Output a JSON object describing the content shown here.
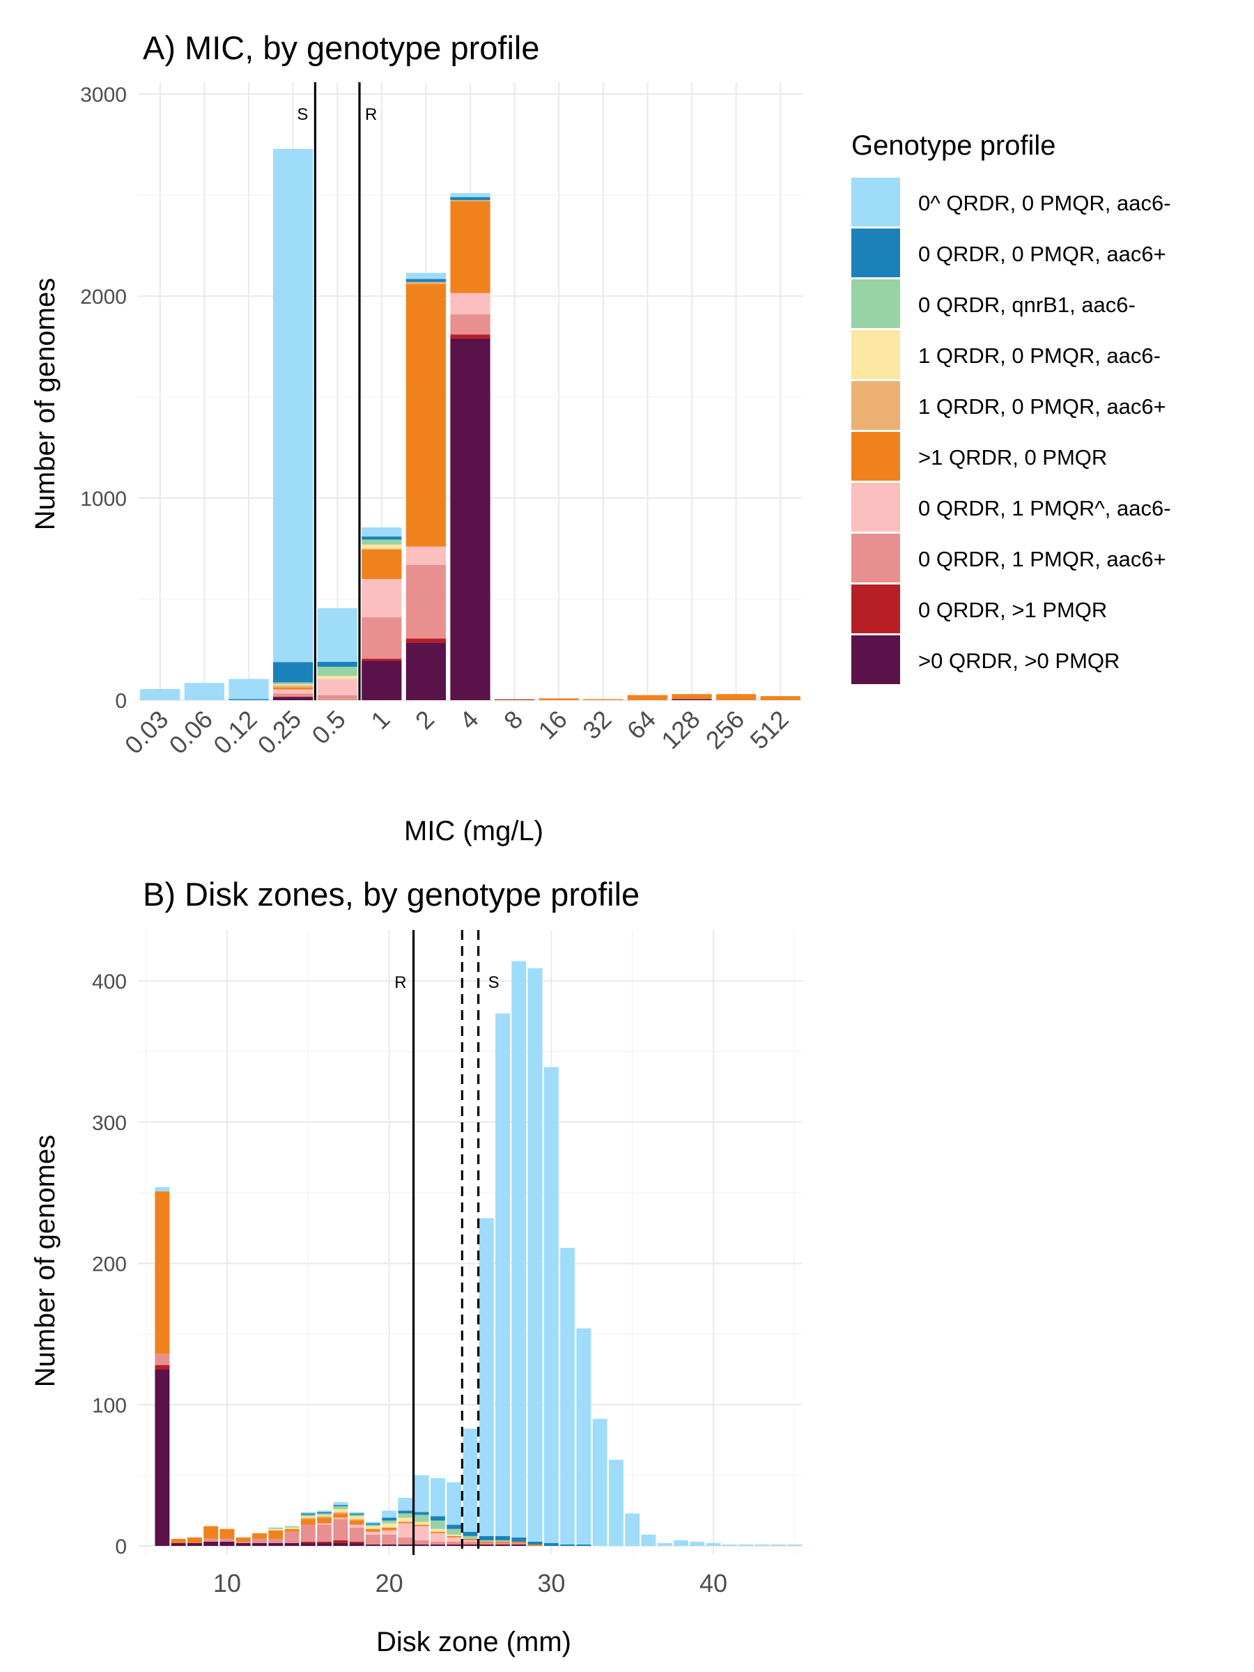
{
  "colors": {
    "0^ QRDR, 0 PMQR, aac6-": "#9edcf9",
    "0 QRDR, 0 PMQR, aac6+": "#1a82b9",
    "0 QRDR, qnrB1, aac6-": "#98d3a5",
    ">1 QRDR, 0 PMQR": "#f0821e",
    "1 QRDR, 0 PMQR, aac6-": "#fbe6a2",
    "1 QRDR, 0 PMQR, aac6+": "#ecb172",
    "0 QRDR, 1 PMQR^, aac6-": "#fcbfc0",
    "0 QRDR, 1 PMQR, aac6+": "#e8908f",
    "0 QRDR, >1 PMQR": "#b81f24",
    ">0 QRDR, >0 PMQR": "#5a124a"
  },
  "legend": {
    "title": "Genotype profile",
    "items": [
      "0^ QRDR, 0 PMQR, aac6-",
      "0 QRDR, 0 PMQR, aac6+",
      "0 QRDR, qnrB1, aac6-",
      "1 QRDR, 0 PMQR, aac6-",
      "1 QRDR, 0 PMQR, aac6+",
      ">1 QRDR, 0 PMQR",
      "0 QRDR, 1 PMQR^, aac6-",
      "0 QRDR, 1 PMQR, aac6+",
      "0 QRDR, >1 PMQR",
      ">0 QRDR, >0 PMQR"
    ]
  },
  "chart_data": [
    {
      "type": "bar",
      "stacked": true,
      "title": "A) MIC, by genotype profile",
      "xlabel": "MIC (mg/L)",
      "ylabel": "Number of genomes",
      "ylim": [
        0,
        3000
      ],
      "yticks": [
        "0",
        "1000",
        "2000",
        "3000"
      ],
      "grid": true,
      "legend_position": "right",
      "categories": [
        "0.03",
        "0.06",
        "0.12",
        "0.25",
        "0.5",
        "1",
        "2",
        "4",
        "8",
        "16",
        "32",
        "64",
        "128",
        "256",
        "512"
      ],
      "reference_lines": [
        {
          "label": "S",
          "between": [
            "0.25",
            "0.5"
          ],
          "style": "solid"
        },
        {
          "label": "R",
          "between": [
            "0.5",
            "1"
          ],
          "style": "solid"
        }
      ],
      "series": [
        {
          "name": ">0 QRDR, >0 PMQR",
          "values": [
            0,
            0,
            0,
            15,
            0,
            195,
            285,
            1790,
            3,
            0,
            0,
            0,
            5,
            0,
            0
          ]
        },
        {
          "name": "0 QRDR, >1 PMQR",
          "values": [
            0,
            0,
            0,
            3,
            0,
            10,
            20,
            20,
            0,
            0,
            0,
            0,
            0,
            0,
            0
          ]
        },
        {
          "name": "0 QRDR, 1 PMQR, aac6+",
          "values": [
            0,
            0,
            0,
            15,
            25,
            205,
            365,
            100,
            0,
            0,
            0,
            0,
            0,
            0,
            0
          ]
        },
        {
          "name": "0 QRDR, 1 PMQR^, aac6-",
          "values": [
            0,
            0,
            0,
            20,
            80,
            190,
            90,
            105,
            0,
            0,
            0,
            0,
            0,
            0,
            0
          ]
        },
        {
          "name": ">1 QRDR, 0 PMQR",
          "values": [
            0,
            0,
            0,
            10,
            0,
            145,
            1300,
            455,
            2,
            8,
            5,
            25,
            25,
            30,
            20
          ]
        },
        {
          "name": "1 QRDR, 0 PMQR, aac6+",
          "values": [
            0,
            0,
            0,
            10,
            0,
            5,
            10,
            5,
            0,
            2,
            0,
            0,
            0,
            0,
            0
          ]
        },
        {
          "name": "1 QRDR, 0 PMQR, aac6-",
          "values": [
            0,
            0,
            0,
            5,
            15,
            20,
            0,
            0,
            0,
            0,
            0,
            0,
            0,
            0,
            0
          ]
        },
        {
          "name": "0 QRDR, qnrB1, aac6-",
          "values": [
            0,
            0,
            0,
            10,
            45,
            25,
            0,
            0,
            0,
            0,
            0,
            0,
            0,
            0,
            0
          ]
        },
        {
          "name": "0 QRDR, 0 PMQR, aac6+",
          "values": [
            0,
            0,
            5,
            100,
            25,
            15,
            15,
            15,
            0,
            0,
            0,
            0,
            0,
            0,
            0
          ]
        },
        {
          "name": "0^ QRDR, 0 PMQR, aac6-",
          "values": [
            55,
            85,
            100,
            2540,
            265,
            45,
            30,
            20,
            0,
            0,
            0,
            0,
            0,
            0,
            0
          ]
        }
      ]
    },
    {
      "type": "bar",
      "stacked": true,
      "title": "B) Disk zones, by genotype profile",
      "xlabel": "Disk zone (mm)",
      "ylabel": "Number of genomes",
      "xlim": [
        4.5,
        45.5
      ],
      "xticks": [
        "10",
        "20",
        "30",
        "40"
      ],
      "ylim": [
        0,
        430
      ],
      "yticks": [
        "0",
        "100",
        "200",
        "300",
        "400"
      ],
      "grid": true,
      "x": [
        6,
        7,
        8,
        9,
        10,
        11,
        12,
        13,
        14,
        15,
        16,
        17,
        18,
        19,
        20,
        21,
        22,
        23,
        24,
        25,
        26,
        27,
        28,
        29,
        30,
        31,
        32,
        33,
        34,
        35,
        36,
        37,
        38,
        39,
        40,
        41,
        42,
        43,
        44,
        45
      ],
      "reference_lines": [
        {
          "label": "R",
          "x": 21.5,
          "style": "solid"
        },
        {
          "label": "S",
          "x": 25.5,
          "style": "dashed"
        },
        {
          "label": "",
          "x": 24.5,
          "style": "dashed"
        }
      ],
      "series": [
        {
          "name": ">0 QRDR, >0 PMQR",
          "values": [
            125,
            2,
            2,
            3,
            3,
            2,
            2,
            2,
            2,
            2,
            2,
            2,
            2,
            1,
            1,
            1,
            1,
            1,
            1,
            1,
            1,
            1,
            1,
            0,
            0,
            0,
            0,
            0,
            0,
            0,
            0,
            0,
            0,
            0,
            0,
            0,
            0,
            0,
            0,
            0
          ]
        },
        {
          "name": "0 QRDR, >1 PMQR",
          "values": [
            3,
            0,
            0,
            0,
            0,
            0,
            0,
            0,
            0,
            1,
            1,
            2,
            1,
            0,
            0,
            0,
            0,
            0,
            0,
            0,
            0,
            0,
            0,
            0,
            0,
            0,
            0,
            0,
            0,
            0,
            0,
            0,
            0,
            0,
            0,
            0,
            0,
            0,
            0,
            0
          ]
        },
        {
          "name": "0 QRDR, 1 PMQR, aac6+",
          "values": [
            8,
            0,
            0,
            2,
            2,
            1,
            3,
            3,
            8,
            12,
            12,
            15,
            10,
            7,
            7,
            5,
            3,
            2,
            2,
            2,
            1,
            1,
            1,
            0,
            0,
            0,
            0,
            0,
            0,
            0,
            0,
            0,
            0,
            0,
            0,
            0,
            0,
            0,
            0,
            0
          ]
        },
        {
          "name": "0 QRDR, 1 PMQR^, aac6-",
          "values": [
            0,
            0,
            0,
            0,
            0,
            0,
            0,
            0,
            0,
            0,
            1,
            1,
            2,
            2,
            3,
            10,
            10,
            6,
            3,
            1,
            0,
            0,
            0,
            0,
            0,
            0,
            0,
            0,
            0,
            0,
            0,
            0,
            0,
            0,
            0,
            0,
            0,
            0,
            0,
            0
          ]
        },
        {
          "name": ">1 QRDR, 0 PMQR",
          "values": [
            115,
            3,
            4,
            9,
            7,
            3,
            4,
            6,
            2,
            4,
            4,
            3,
            3,
            2,
            2,
            1,
            1,
            1,
            1,
            1,
            1,
            1,
            1,
            1,
            0,
            0,
            0,
            0,
            0,
            0,
            0,
            0,
            0,
            0,
            0,
            0,
            0,
            0,
            0,
            0
          ]
        },
        {
          "name": "1 QRDR, 0 PMQR, aac6+",
          "values": [
            0,
            0,
            0,
            0,
            0,
            0,
            0,
            0,
            0,
            1,
            1,
            1,
            1,
            0,
            0,
            0,
            0,
            0,
            0,
            0,
            0,
            0,
            0,
            0,
            0,
            0,
            0,
            0,
            0,
            0,
            0,
            0,
            0,
            0,
            0,
            0,
            0,
            0,
            0,
            0
          ]
        },
        {
          "name": "1 QRDR, 0 PMQR, aac6-",
          "values": [
            0,
            0,
            0,
            0,
            0,
            0,
            0,
            1,
            1,
            1,
            1,
            2,
            2,
            2,
            3,
            3,
            2,
            2,
            1,
            0,
            0,
            0,
            0,
            0,
            0,
            0,
            0,
            0,
            0,
            0,
            0,
            0,
            0,
            0,
            0,
            0,
            0,
            0,
            0,
            0
          ]
        },
        {
          "name": "0 QRDR, qnrB1, aac6-",
          "values": [
            0,
            0,
            0,
            0,
            0,
            0,
            0,
            1,
            1,
            1,
            1,
            2,
            1,
            1,
            2,
            3,
            5,
            6,
            4,
            2,
            1,
            1,
            0,
            0,
            0,
            0,
            0,
            0,
            0,
            0,
            0,
            0,
            0,
            0,
            0,
            0,
            0,
            0,
            0,
            0
          ]
        },
        {
          "name": "0 QRDR, 0 PMQR, aac6+",
          "values": [
            0,
            0,
            0,
            0,
            0,
            0,
            0,
            0,
            0,
            1,
            1,
            1,
            1,
            1,
            2,
            2,
            2,
            3,
            3,
            3,
            3,
            3,
            3,
            2,
            2,
            1,
            1,
            0,
            0,
            0,
            0,
            0,
            0,
            0,
            0,
            0,
            0,
            0,
            0,
            0
          ]
        },
        {
          "name": "0^ QRDR, 0 PMQR, aac6-",
          "values": [
            3,
            0,
            0,
            0,
            0,
            0,
            0,
            0,
            0,
            1,
            1,
            2,
            1,
            1,
            5,
            9,
            26,
            27,
            30,
            73,
            225,
            370,
            408,
            406,
            337,
            210,
            153,
            90,
            61,
            23,
            8,
            2,
            4,
            3,
            2,
            1,
            1,
            1,
            1,
            1
          ]
        }
      ]
    }
  ]
}
